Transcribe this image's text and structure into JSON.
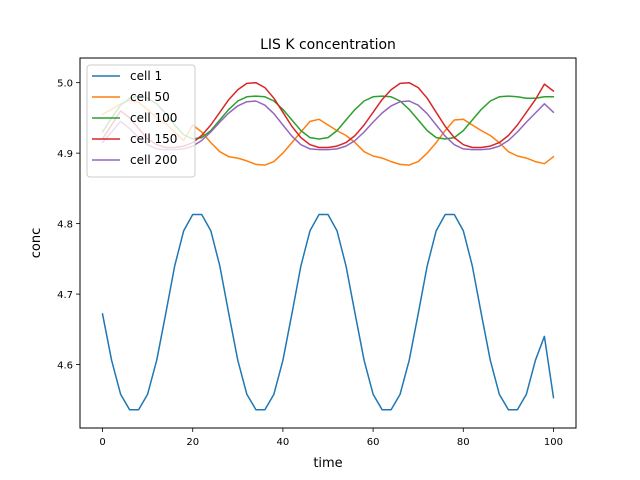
{
  "chart_data": {
    "type": "line",
    "title": "LIS K concentration",
    "xlabel": "time",
    "ylabel": "conc",
    "xlim": [
      -5,
      105
    ],
    "ylim": [
      4.51,
      5.035
    ],
    "xticks": [
      0,
      20,
      40,
      60,
      80,
      100
    ],
    "yticks": [
      4.6,
      4.7,
      4.8,
      4.9,
      5.0
    ],
    "xtick_labels": [
      "0",
      "20",
      "40",
      "60",
      "80",
      "100"
    ],
    "ytick_labels": [
      "4.6",
      "4.7",
      "4.8",
      "4.9",
      "5.0"
    ],
    "grid": false,
    "legend_position": "top-left",
    "series": [
      {
        "name": "cell 1",
        "color": "#1f77b4",
        "points": [
          [
            0,
            4.672
          ],
          [
            2,
            4.606
          ],
          [
            4,
            4.558
          ],
          [
            6,
            4.536
          ],
          [
            8,
            4.536
          ],
          [
            10,
            4.558
          ],
          [
            12,
            4.606
          ],
          [
            14,
            4.672
          ],
          [
            16,
            4.74
          ],
          [
            18,
            4.79
          ],
          [
            20,
            4.813
          ],
          [
            22,
            4.813
          ],
          [
            24,
            4.79
          ],
          [
            26,
            4.74
          ],
          [
            28,
            4.672
          ],
          [
            30,
            4.606
          ],
          [
            32,
            4.558
          ],
          [
            34,
            4.536
          ],
          [
            36,
            4.536
          ],
          [
            38,
            4.558
          ],
          [
            40,
            4.606
          ],
          [
            42,
            4.672
          ],
          [
            44,
            4.74
          ],
          [
            46,
            4.79
          ],
          [
            48,
            4.813
          ],
          [
            50,
            4.813
          ],
          [
            52,
            4.79
          ],
          [
            54,
            4.74
          ],
          [
            56,
            4.672
          ],
          [
            58,
            4.606
          ],
          [
            60,
            4.558
          ],
          [
            62,
            4.536
          ],
          [
            64,
            4.536
          ],
          [
            66,
            4.558
          ],
          [
            68,
            4.606
          ],
          [
            70,
            4.672
          ],
          [
            72,
            4.74
          ],
          [
            74,
            4.79
          ],
          [
            76,
            4.813
          ],
          [
            78,
            4.813
          ],
          [
            80,
            4.79
          ],
          [
            82,
            4.74
          ],
          [
            84,
            4.672
          ],
          [
            86,
            4.606
          ],
          [
            88,
            4.558
          ],
          [
            90,
            4.536
          ],
          [
            92,
            4.536
          ],
          [
            94,
            4.558
          ],
          [
            96,
            4.606
          ],
          [
            98,
            4.64
          ],
          [
            100,
            4.553
          ]
        ]
      },
      {
        "name": "cell 50",
        "color": "#ff7f0e",
        "points": [
          [
            0,
            4.955
          ],
          [
            2,
            4.962
          ],
          [
            4,
            4.97
          ],
          [
            6,
            4.975
          ],
          [
            8,
            4.972
          ],
          [
            10,
            4.962
          ],
          [
            12,
            4.95
          ],
          [
            14,
            4.942
          ],
          [
            16,
            4.93
          ],
          [
            18,
            4.918
          ],
          [
            20,
            4.94
          ],
          [
            22,
            4.93
          ],
          [
            24,
            4.915
          ],
          [
            26,
            4.902
          ],
          [
            28,
            4.895
          ],
          [
            30,
            4.893
          ],
          [
            32,
            4.889
          ],
          [
            34,
            4.884
          ],
          [
            36,
            4.883
          ],
          [
            38,
            4.888
          ],
          [
            40,
            4.9
          ],
          [
            42,
            4.915
          ],
          [
            44,
            4.93
          ],
          [
            46,
            4.945
          ],
          [
            48,
            4.948
          ],
          [
            50,
            4.94
          ],
          [
            52,
            4.932
          ],
          [
            54,
            4.925
          ],
          [
            56,
            4.915
          ],
          [
            58,
            4.902
          ],
          [
            60,
            4.896
          ],
          [
            62,
            4.893
          ],
          [
            64,
            4.888
          ],
          [
            66,
            4.884
          ],
          [
            68,
            4.883
          ],
          [
            70,
            4.888
          ],
          [
            72,
            4.9
          ],
          [
            74,
            4.915
          ],
          [
            76,
            4.932
          ],
          [
            78,
            4.947
          ],
          [
            80,
            4.948
          ],
          [
            82,
            4.94
          ],
          [
            84,
            4.932
          ],
          [
            86,
            4.925
          ],
          [
            88,
            4.915
          ],
          [
            90,
            4.902
          ],
          [
            92,
            4.896
          ],
          [
            94,
            4.893
          ],
          [
            96,
            4.888
          ],
          [
            98,
            4.885
          ],
          [
            100,
            4.895
          ]
        ]
      },
      {
        "name": "cell 100",
        "color": "#2ca02c",
        "points": [
          [
            0,
            4.93
          ],
          [
            2,
            4.95
          ],
          [
            4,
            4.968
          ],
          [
            6,
            4.978
          ],
          [
            8,
            4.981
          ],
          [
            10,
            4.978
          ],
          [
            12,
            4.97
          ],
          [
            14,
            4.956
          ],
          [
            16,
            4.94
          ],
          [
            18,
            4.926
          ],
          [
            20,
            4.92
          ],
          [
            22,
            4.922
          ],
          [
            24,
            4.932
          ],
          [
            26,
            4.947
          ],
          [
            28,
            4.962
          ],
          [
            30,
            4.974
          ],
          [
            32,
            4.98
          ],
          [
            34,
            4.981
          ],
          [
            36,
            4.98
          ],
          [
            38,
            4.974
          ],
          [
            40,
            4.962
          ],
          [
            42,
            4.947
          ],
          [
            44,
            4.932
          ],
          [
            46,
            4.922
          ],
          [
            48,
            4.92
          ],
          [
            50,
            4.922
          ],
          [
            52,
            4.932
          ],
          [
            54,
            4.947
          ],
          [
            56,
            4.962
          ],
          [
            58,
            4.974
          ],
          [
            60,
            4.98
          ],
          [
            62,
            4.981
          ],
          [
            64,
            4.98
          ],
          [
            66,
            4.974
          ],
          [
            68,
            4.962
          ],
          [
            70,
            4.947
          ],
          [
            72,
            4.932
          ],
          [
            74,
            4.922
          ],
          [
            76,
            4.92
          ],
          [
            78,
            4.922
          ],
          [
            80,
            4.932
          ],
          [
            82,
            4.947
          ],
          [
            84,
            4.962
          ],
          [
            86,
            4.974
          ],
          [
            88,
            4.98
          ],
          [
            90,
            4.981
          ],
          [
            92,
            4.98
          ],
          [
            94,
            4.978
          ],
          [
            96,
            4.978
          ],
          [
            98,
            4.98
          ],
          [
            100,
            4.98
          ]
        ]
      },
      {
        "name": "cell 150",
        "color": "#d62728",
        "points": [
          [
            0,
            4.92
          ],
          [
            2,
            4.94
          ],
          [
            4,
            4.96
          ],
          [
            6,
            4.95
          ],
          [
            8,
            4.935
          ],
          [
            10,
            4.92
          ],
          [
            12,
            4.912
          ],
          [
            14,
            4.908
          ],
          [
            16,
            4.908
          ],
          [
            18,
            4.91
          ],
          [
            20,
            4.915
          ],
          [
            22,
            4.925
          ],
          [
            24,
            4.94
          ],
          [
            26,
            4.958
          ],
          [
            28,
            4.976
          ],
          [
            30,
            4.99
          ],
          [
            32,
            4.999
          ],
          [
            34,
            5.0
          ],
          [
            36,
            4.993
          ],
          [
            38,
            4.978
          ],
          [
            40,
            4.958
          ],
          [
            42,
            4.938
          ],
          [
            44,
            4.922
          ],
          [
            46,
            4.912
          ],
          [
            48,
            4.908
          ],
          [
            50,
            4.908
          ],
          [
            52,
            4.91
          ],
          [
            54,
            4.915
          ],
          [
            56,
            4.925
          ],
          [
            58,
            4.94
          ],
          [
            60,
            4.958
          ],
          [
            62,
            4.976
          ],
          [
            64,
            4.99
          ],
          [
            66,
            4.999
          ],
          [
            68,
            5.0
          ],
          [
            70,
            4.993
          ],
          [
            72,
            4.978
          ],
          [
            74,
            4.958
          ],
          [
            76,
            4.938
          ],
          [
            78,
            4.922
          ],
          [
            80,
            4.912
          ],
          [
            82,
            4.908
          ],
          [
            84,
            4.908
          ],
          [
            86,
            4.91
          ],
          [
            88,
            4.915
          ],
          [
            90,
            4.925
          ],
          [
            92,
            4.94
          ],
          [
            94,
            4.958
          ],
          [
            96,
            4.976
          ],
          [
            98,
            4.998
          ],
          [
            100,
            4.988
          ]
        ]
      },
      {
        "name": "cell 200",
        "color": "#9467bd",
        "points": [
          [
            0,
            4.915
          ],
          [
            2,
            4.93
          ],
          [
            4,
            4.945
          ],
          [
            6,
            4.935
          ],
          [
            8,
            4.922
          ],
          [
            10,
            4.912
          ],
          [
            12,
            4.906
          ],
          [
            14,
            4.905
          ],
          [
            16,
            4.905
          ],
          [
            18,
            4.906
          ],
          [
            20,
            4.91
          ],
          [
            22,
            4.918
          ],
          [
            24,
            4.93
          ],
          [
            26,
            4.944
          ],
          [
            28,
            4.957
          ],
          [
            30,
            4.967
          ],
          [
            32,
            4.973
          ],
          [
            34,
            4.974
          ],
          [
            36,
            4.968
          ],
          [
            38,
            4.956
          ],
          [
            40,
            4.94
          ],
          [
            42,
            4.924
          ],
          [
            44,
            4.912
          ],
          [
            46,
            4.906
          ],
          [
            48,
            4.905
          ],
          [
            50,
            4.905
          ],
          [
            52,
            4.906
          ],
          [
            54,
            4.91
          ],
          [
            56,
            4.918
          ],
          [
            58,
            4.93
          ],
          [
            60,
            4.944
          ],
          [
            62,
            4.957
          ],
          [
            64,
            4.967
          ],
          [
            66,
            4.973
          ],
          [
            68,
            4.974
          ],
          [
            70,
            4.968
          ],
          [
            72,
            4.956
          ],
          [
            74,
            4.94
          ],
          [
            76,
            4.924
          ],
          [
            78,
            4.912
          ],
          [
            80,
            4.906
          ],
          [
            82,
            4.905
          ],
          [
            84,
            4.905
          ],
          [
            86,
            4.906
          ],
          [
            88,
            4.91
          ],
          [
            90,
            4.918
          ],
          [
            92,
            4.93
          ],
          [
            94,
            4.944
          ],
          [
            96,
            4.957
          ],
          [
            98,
            4.97
          ],
          [
            100,
            4.958
          ]
        ]
      }
    ]
  }
}
